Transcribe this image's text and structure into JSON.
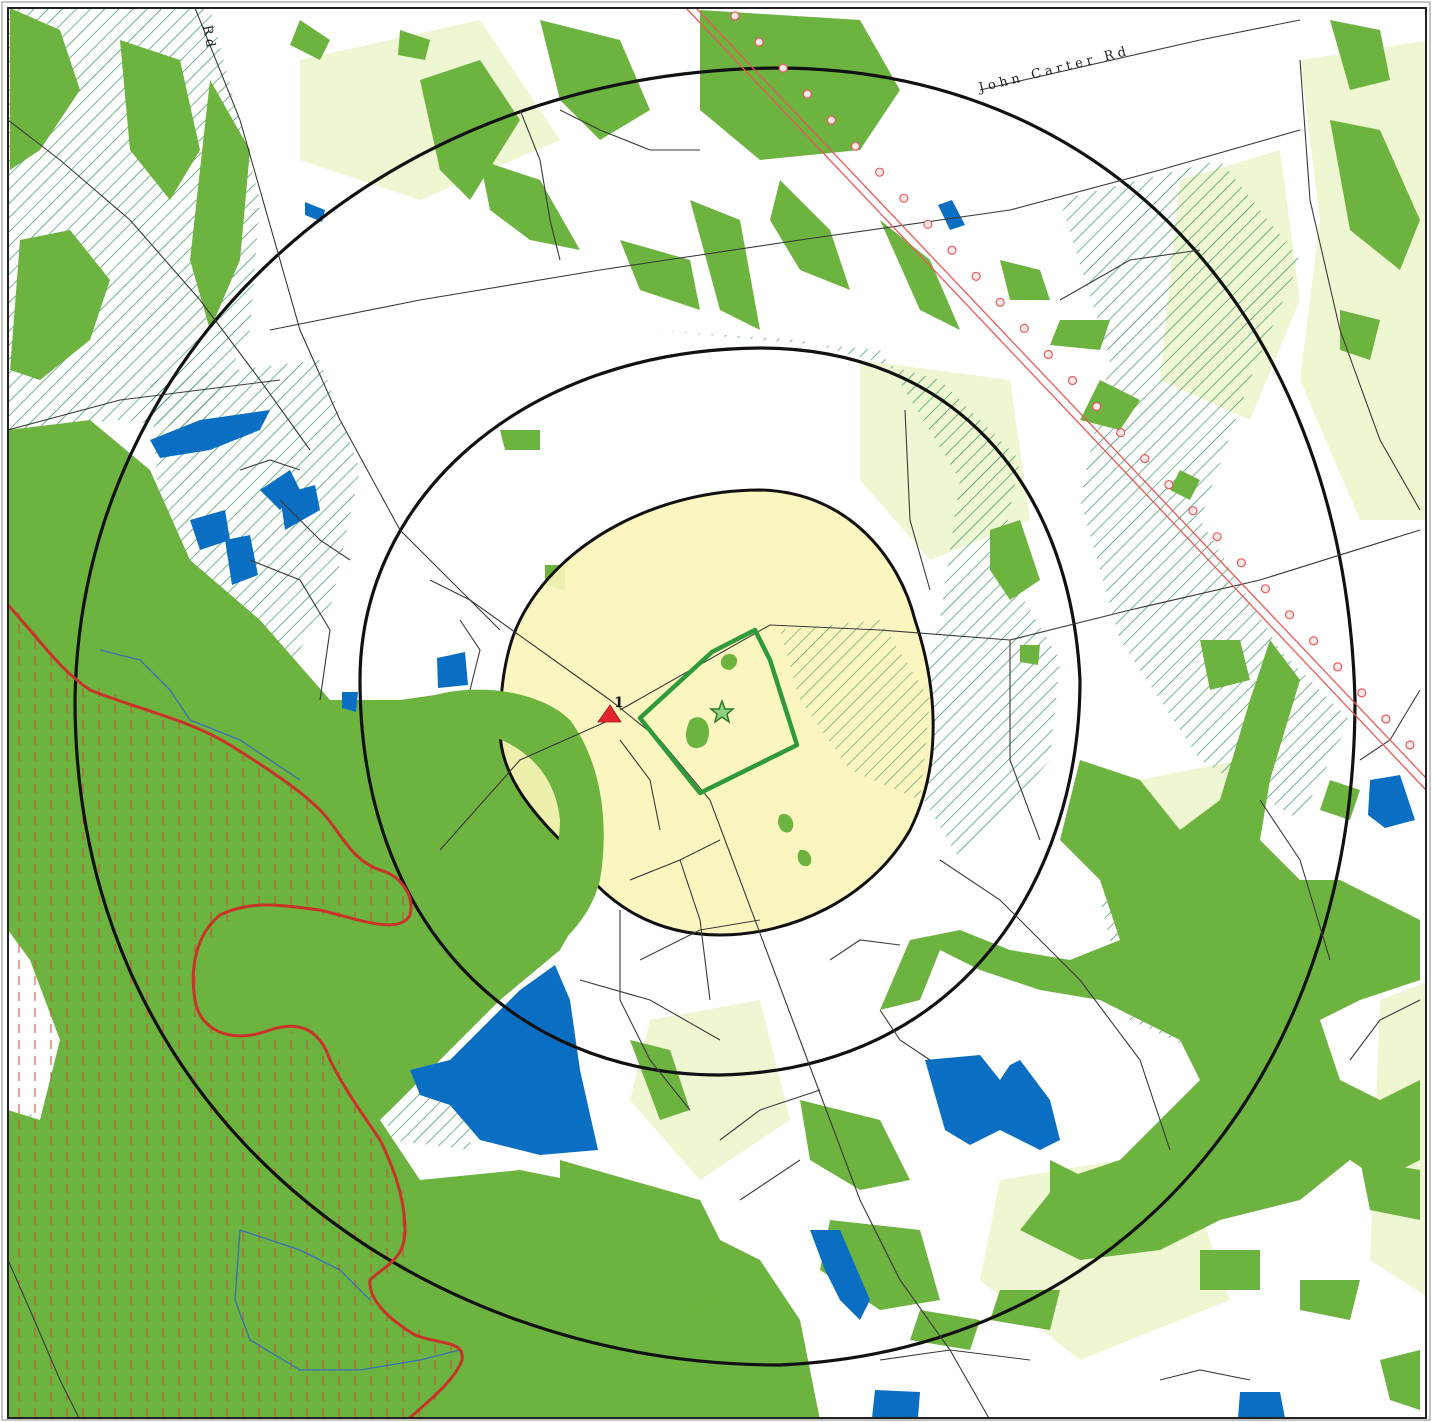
{
  "map": {
    "roads": {
      "john_carter_rd": "John Carter Rd",
      "rd_fragment": "Rd"
    },
    "marker": {
      "label": "1",
      "color": "#e3262b"
    },
    "colors": {
      "forest": "#6db33f",
      "light_vegetation": "#eef7d2",
      "water": "#0a6fc2",
      "site_zone": "#fbf5b8",
      "site_boundary": "#2e9a3a",
      "hatch": "#2e8b57",
      "pipeline": "#e85a5a",
      "rings": "#111111",
      "river": "#c8342a",
      "stream": "#3b6fb4"
    },
    "icons": [
      "star-icon",
      "triangle-marker-icon"
    ]
  }
}
